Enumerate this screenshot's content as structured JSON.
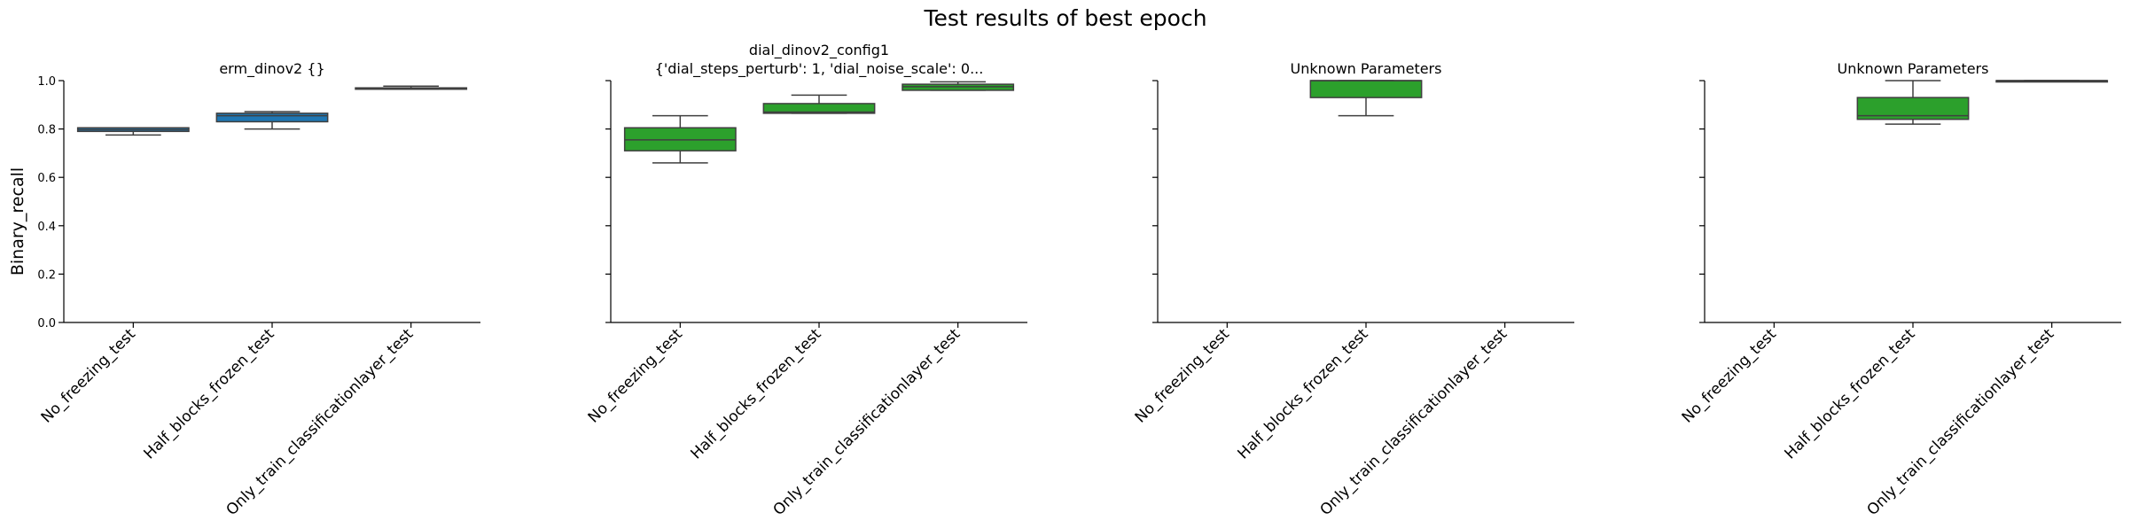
{
  "figure": {
    "suptitle": "Test results of best epoch",
    "ylabel": "Binary_recall"
  },
  "chart_data": [
    {
      "type": "box",
      "title_lines": [
        "erm_dinov2         {}"
      ],
      "ylabel": "Binary_recall",
      "ylim": [
        0,
        1
      ],
      "yticks": [
        "0.0",
        "0.2",
        "0.4",
        "0.6",
        "0.8",
        "1.0"
      ],
      "categories": [
        "No_freezing_test",
        "Half_blocks_frozen_test",
        "Only_train_classificationlayer_test"
      ],
      "color": "#1f77b4",
      "boxes": [
        {
          "category": "No_freezing_test",
          "whislo": 0.775,
          "q1": 0.79,
          "median": 0.797,
          "q3": 0.805,
          "whishi": 0.805
        },
        {
          "category": "Half_blocks_frozen_test",
          "whislo": 0.8,
          "q1": 0.83,
          "median": 0.855,
          "q3": 0.865,
          "whishi": 0.872
        },
        {
          "category": "Only_train_classificationlayer_test",
          "whislo": 0.965,
          "q1": 0.965,
          "median": 0.97,
          "q3": 0.97,
          "whishi": 0.977
        }
      ],
      "grid": false,
      "legend": "none"
    },
    {
      "type": "box",
      "title_lines": [
        "dial_dinov2_config1",
        "{'dial_steps_perturb': 1, 'dial_noise_scale': 0..."
      ],
      "ylim": [
        0,
        1
      ],
      "categories": [
        "No_freezing_test",
        "Half_blocks_frozen_test",
        "Only_train_classificationlayer_test"
      ],
      "color": "#2ca02c",
      "boxes": [
        {
          "category": "No_freezing_test",
          "whislo": 0.66,
          "q1": 0.71,
          "median": 0.755,
          "q3": 0.805,
          "whishi": 0.855
        },
        {
          "category": "Half_blocks_frozen_test",
          "whislo": 0.865,
          "q1": 0.865,
          "median": 0.87,
          "q3": 0.905,
          "whishi": 0.94
        },
        {
          "category": "Only_train_classificationlayer_test",
          "whislo": 0.96,
          "q1": 0.96,
          "median": 0.975,
          "q3": 0.985,
          "whishi": 0.995
        }
      ],
      "grid": false,
      "legend": "none"
    },
    {
      "type": "box",
      "title_lines": [
        "Unknown Parameters"
      ],
      "ylim": [
        0,
        1
      ],
      "categories": [
        "No_freezing_test",
        "Half_blocks_frozen_test",
        "Only_train_classificationlayer_test"
      ],
      "color": "#2ca02c",
      "boxes": [
        {
          "category": "Half_blocks_frozen_test",
          "whislo": 0.855,
          "q1": 0.93,
          "median": 1.0,
          "q3": 1.0,
          "whishi": 1.0
        }
      ],
      "grid": false,
      "legend": "none"
    },
    {
      "type": "box",
      "title_lines": [
        "Unknown Parameters"
      ],
      "ylim": [
        0,
        1
      ],
      "categories": [
        "No_freezing_test",
        "Half_blocks_frozen_test",
        "Only_train_classificationlayer_test"
      ],
      "color": "#2ca02c",
      "boxes": [
        {
          "category": "Half_blocks_frozen_test",
          "whislo": 0.82,
          "q1": 0.84,
          "median": 0.855,
          "q3": 0.93,
          "whishi": 1.0
        },
        {
          "category": "Only_train_classificationlayer_test",
          "whislo": 1.0,
          "q1": 1.0,
          "median": 1.0,
          "q3": 1.0,
          "whishi": 1.0
        }
      ],
      "grid": false,
      "legend": "none"
    }
  ]
}
